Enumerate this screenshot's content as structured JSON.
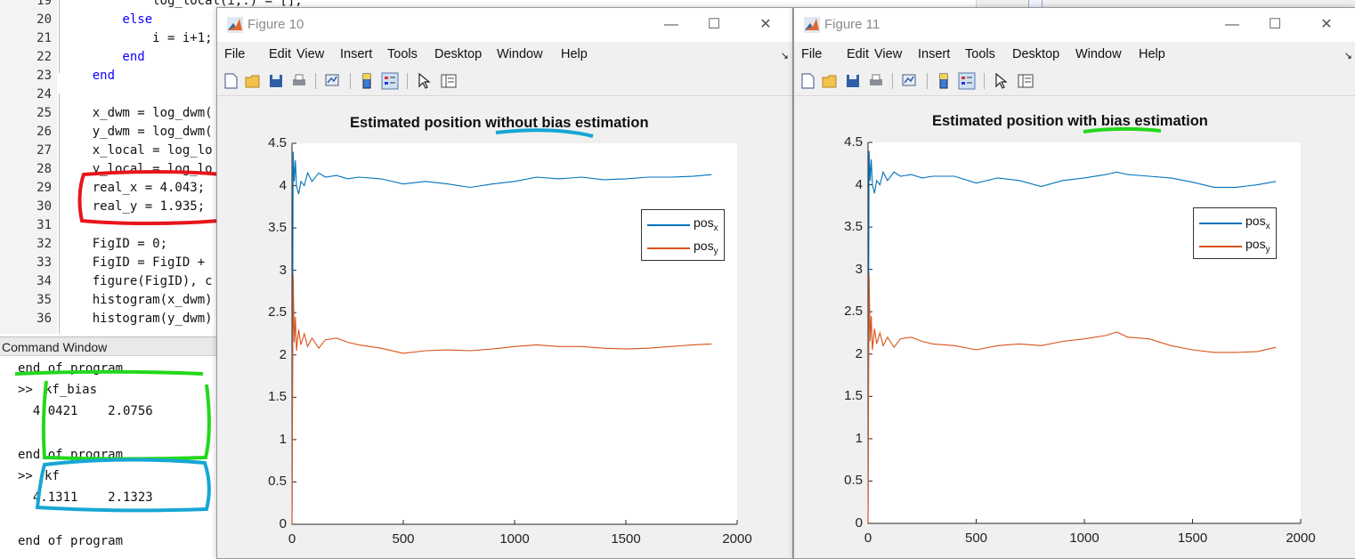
{
  "editor": {
    "lines": [
      {
        "num": "19",
        "text": "            log_local(i,:) = [];"
      },
      {
        "num": "20",
        "text": "        else"
      },
      {
        "num": "21",
        "text": "            i = i+1;"
      },
      {
        "num": "22",
        "text": "        end"
      },
      {
        "num": "23",
        "text": "    end"
      },
      {
        "num": "24",
        "text": ""
      },
      {
        "num": "25",
        "text": "    x_dwm = log_dwm("
      },
      {
        "num": "26",
        "text": "    y_dwm = log_dwm("
      },
      {
        "num": "27",
        "text": "    x_local = log_lo"
      },
      {
        "num": "28",
        "text": "    y_local = log_lo"
      },
      {
        "num": "29",
        "text": "    real_x = 4.043;"
      },
      {
        "num": "30",
        "text": "    real_y = 1.935;"
      },
      {
        "num": "31",
        "text": ""
      },
      {
        "num": "32",
        "text": "    FigID = 0;"
      },
      {
        "num": "33",
        "text": "    FigID = FigID +"
      },
      {
        "num": "34",
        "text": "    figure(FigID), c"
      },
      {
        "num": "35",
        "text": "    histogram(x_dwm)"
      },
      {
        "num": "36",
        "text": "    histogram(y_dwm)"
      }
    ]
  },
  "command_window": {
    "title": "Command Window",
    "lines": [
      {
        "prompt": "",
        "text": "end of program"
      },
      {
        "prompt": ">>",
        "text": "kf_bias"
      },
      {
        "prompt": "",
        "text": "  4.0421    2.0756"
      },
      {
        "prompt": "",
        "text": ""
      },
      {
        "prompt": "",
        "text": "end of program"
      },
      {
        "prompt": ">>",
        "text": "kf"
      },
      {
        "prompt": "",
        "text": "  4.1311    2.1323"
      },
      {
        "prompt": "",
        "text": ""
      },
      {
        "prompt": "",
        "text": "end of program"
      }
    ]
  },
  "annotation_colors": {
    "red": "#e8141c",
    "green": "#23d81c",
    "blue": "#17a6d4"
  },
  "figures": [
    {
      "window_title": "Figure 10",
      "menus": [
        "File",
        "Edit",
        "View",
        "Insert",
        "Tools",
        "Desktop",
        "Window",
        "Help"
      ],
      "toolbar_icons": [
        "new-figure-icon",
        "open-file-icon",
        "save-icon",
        "print-icon",
        "link-plot-icon",
        "colorbar-icon",
        "legend-icon",
        "pointer-icon",
        "property-inspector-icon"
      ],
      "title": "Estimated position without bias estimation",
      "legend": [
        {
          "base": "pos",
          "sub": "x"
        },
        {
          "base": "pos",
          "sub": "y"
        }
      ]
    },
    {
      "window_title": "Figure 11",
      "menus": [
        "File",
        "Edit",
        "View",
        "Insert",
        "Tools",
        "Desktop",
        "Window",
        "Help"
      ],
      "toolbar_icons": [
        "new-figure-icon",
        "open-file-icon",
        "save-icon",
        "print-icon",
        "link-plot-icon",
        "colorbar-icon",
        "legend-icon",
        "pointer-icon",
        "property-inspector-icon"
      ],
      "title": "Estimated position with bias estimation",
      "legend": [
        {
          "base": "pos",
          "sub": "x"
        },
        {
          "base": "pos",
          "sub": "y"
        }
      ]
    }
  ],
  "chart_data": [
    {
      "type": "line",
      "title": "Estimated position without bias estimation",
      "xlabel": "",
      "ylabel": "",
      "xlim": [
        0,
        2000
      ],
      "ylim": [
        0,
        4.5
      ],
      "xticks": [
        "0",
        "500",
        "1000",
        "1500",
        "2000"
      ],
      "yticks": [
        "0",
        "0.5",
        "1",
        "1.5",
        "2",
        "2.5",
        "3",
        "3.5",
        "4",
        "4.5"
      ],
      "grid": false,
      "legend_position": "right",
      "series": [
        {
          "name": "pos_x",
          "color": "#0072bd",
          "x": [
            0,
            5,
            10,
            15,
            20,
            30,
            40,
            55,
            70,
            90,
            120,
            150,
            200,
            250,
            300,
            400,
            500,
            600,
            700,
            800,
            900,
            1000,
            1100,
            1200,
            1300,
            1400,
            1500,
            1600,
            1700,
            1800,
            1885
          ],
          "y": [
            0,
            4.4,
            4.05,
            4.3,
            4.0,
            3.9,
            4.05,
            4.0,
            4.15,
            4.05,
            4.15,
            4.1,
            4.12,
            4.08,
            4.1,
            4.08,
            4.02,
            4.05,
            4.02,
            3.98,
            4.02,
            4.05,
            4.1,
            4.08,
            4.1,
            4.07,
            4.08,
            4.1,
            4.1,
            4.11,
            4.13
          ]
        },
        {
          "name": "pos_y",
          "color": "#d95319",
          "x": [
            0,
            5,
            10,
            15,
            20,
            30,
            40,
            55,
            70,
            90,
            120,
            150,
            200,
            250,
            300,
            400,
            500,
            600,
            700,
            800,
            900,
            1000,
            1100,
            1200,
            1300,
            1400,
            1500,
            1600,
            1700,
            1800,
            1885
          ],
          "y": [
            0,
            2.95,
            2.15,
            2.45,
            2.05,
            2.3,
            2.12,
            2.25,
            2.1,
            2.2,
            2.08,
            2.18,
            2.2,
            2.15,
            2.12,
            2.08,
            2.02,
            2.05,
            2.06,
            2.05,
            2.07,
            2.1,
            2.12,
            2.1,
            2.1,
            2.08,
            2.07,
            2.08,
            2.1,
            2.12,
            2.13
          ]
        }
      ]
    },
    {
      "type": "line",
      "title": "Estimated position with bias estimation",
      "xlabel": "",
      "ylabel": "",
      "xlim": [
        0,
        2000
      ],
      "ylim": [
        0,
        4.5
      ],
      "xticks": [
        "0",
        "500",
        "1000",
        "1500",
        "2000"
      ],
      "yticks": [
        "0",
        "0.5",
        "1",
        "1.5",
        "2",
        "2.5",
        "3",
        "3.5",
        "4",
        "4.5"
      ],
      "grid": false,
      "legend_position": "right",
      "series": [
        {
          "name": "pos_x",
          "color": "#0072bd",
          "x": [
            0,
            5,
            10,
            15,
            20,
            30,
            40,
            55,
            70,
            90,
            120,
            150,
            200,
            250,
            300,
            400,
            500,
            600,
            700,
            800,
            900,
            1000,
            1100,
            1150,
            1200,
            1300,
            1400,
            1500,
            1600,
            1700,
            1800,
            1885
          ],
          "y": [
            0,
            4.4,
            4.05,
            4.3,
            4.0,
            3.9,
            4.05,
            4.0,
            4.15,
            4.05,
            4.15,
            4.1,
            4.12,
            4.08,
            4.1,
            4.1,
            4.02,
            4.08,
            4.05,
            3.98,
            4.05,
            4.08,
            4.12,
            4.15,
            4.12,
            4.1,
            4.08,
            4.03,
            3.97,
            3.97,
            4.0,
            4.04
          ]
        },
        {
          "name": "pos_y",
          "color": "#d95319",
          "x": [
            0,
            5,
            10,
            15,
            20,
            30,
            40,
            55,
            70,
            90,
            120,
            150,
            200,
            250,
            300,
            400,
            500,
            600,
            700,
            800,
            900,
            1000,
            1100,
            1150,
            1200,
            1300,
            1400,
            1500,
            1600,
            1700,
            1800,
            1885
          ],
          "y": [
            0,
            2.95,
            2.15,
            2.45,
            2.05,
            2.3,
            2.12,
            2.25,
            2.1,
            2.2,
            2.08,
            2.18,
            2.2,
            2.15,
            2.12,
            2.1,
            2.05,
            2.1,
            2.12,
            2.1,
            2.15,
            2.18,
            2.22,
            2.26,
            2.2,
            2.18,
            2.1,
            2.05,
            2.02,
            2.02,
            2.03,
            2.08
          ]
        }
      ]
    }
  ]
}
